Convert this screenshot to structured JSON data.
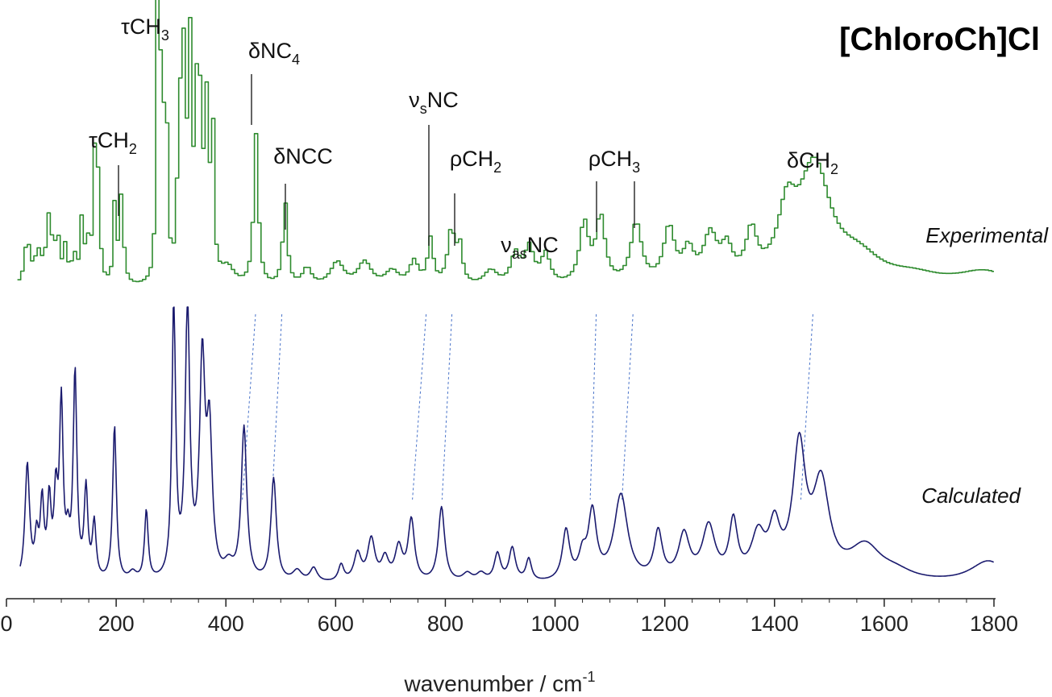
{
  "chart_data": {
    "type": "line",
    "title": "[ChloroCh]Cl",
    "xlabel": "wavenumber / cm",
    "xlabel_superscript": "-1",
    "ylabel": "",
    "xlim": [
      0,
      1800
    ],
    "xticks": [
      0,
      200,
      400,
      600,
      800,
      1000,
      1200,
      1400,
      1600,
      1800
    ],
    "grid": false,
    "legend": "none",
    "series": [
      {
        "name": "Experimental",
        "color": "#2e8b2e",
        "style": "stepped",
        "baseline": 0.05,
        "peaks": [
          [
            35,
            0.15,
            6
          ],
          [
            55,
            0.1,
            8
          ],
          [
            75,
            0.22,
            6
          ],
          [
            90,
            0.15,
            5
          ],
          [
            105,
            0.12,
            4
          ],
          [
            120,
            0.1,
            4
          ],
          [
            135,
            0.22,
            4
          ],
          [
            145,
            0.12,
            3
          ],
          [
            157,
            0.45,
            3
          ],
          [
            165,
            0.35,
            3
          ],
          [
            195,
            0.28,
            3
          ],
          [
            207,
            0.3,
            4
          ],
          [
            272,
            0.85,
            2.5
          ],
          [
            278,
            0.55,
            2.5
          ],
          [
            287,
            0.95,
            3
          ],
          [
            312,
            0.75,
            3
          ],
          [
            322,
            1.0,
            3
          ],
          [
            333,
            0.8,
            3
          ],
          [
            343,
            0.6,
            3
          ],
          [
            352,
            0.75,
            3
          ],
          [
            362,
            0.52,
            3
          ],
          [
            372,
            0.7,
            3
          ],
          [
            400,
            0.06,
            15
          ],
          [
            452,
            0.5,
            5
          ],
          [
            505,
            0.28,
            5
          ],
          [
            545,
            0.06,
            10
          ],
          [
            600,
            0.08,
            15
          ],
          [
            650,
            0.08,
            15
          ],
          [
            700,
            0.05,
            15
          ],
          [
            740,
            0.08,
            10
          ],
          [
            770,
            0.15,
            6
          ],
          [
            808,
            0.18,
            8
          ],
          [
            823,
            0.12,
            6
          ],
          [
            880,
            0.05,
            15
          ],
          [
            925,
            0.1,
            10
          ],
          [
            950,
            0.12,
            10
          ],
          [
            980,
            0.1,
            10
          ],
          [
            1050,
            0.2,
            10
          ],
          [
            1080,
            0.22,
            10
          ],
          [
            1145,
            0.2,
            12
          ],
          [
            1205,
            0.18,
            12
          ],
          [
            1240,
            0.1,
            12
          ],
          [
            1280,
            0.15,
            15
          ],
          [
            1310,
            0.1,
            12
          ],
          [
            1355,
            0.15,
            12
          ],
          [
            1420,
            0.2,
            20
          ],
          [
            1470,
            0.38,
            35
          ],
          [
            1550,
            0.08,
            50
          ],
          [
            1650,
            0.03,
            60
          ],
          [
            1780,
            0.05,
            60
          ]
        ]
      },
      {
        "name": "Calculated",
        "color": "#1a1a6e",
        "style": "smooth",
        "baseline": 0.02,
        "peaks": [
          [
            38,
            0.42,
            5
          ],
          [
            55,
            0.14,
            4
          ],
          [
            65,
            0.27,
            4
          ],
          [
            78,
            0.27,
            4
          ],
          [
            90,
            0.28,
            4
          ],
          [
            100,
            0.62,
            4
          ],
          [
            112,
            0.12,
            4
          ],
          [
            125,
            0.74,
            4
          ],
          [
            145,
            0.32,
            4
          ],
          [
            160,
            0.2,
            4
          ],
          [
            197,
            0.56,
            4
          ],
          [
            230,
            0.03,
            8
          ],
          [
            255,
            0.25,
            4
          ],
          [
            305,
            1.0,
            4
          ],
          [
            330,
            0.97,
            5
          ],
          [
            357,
            0.76,
            6
          ],
          [
            370,
            0.5,
            6
          ],
          [
            405,
            0.05,
            10
          ],
          [
            433,
            0.55,
            6
          ],
          [
            487,
            0.37,
            6
          ],
          [
            530,
            0.04,
            10
          ],
          [
            560,
            0.05,
            8
          ],
          [
            610,
            0.06,
            6
          ],
          [
            640,
            0.1,
            8
          ],
          [
            665,
            0.15,
            8
          ],
          [
            690,
            0.08,
            8
          ],
          [
            715,
            0.12,
            8
          ],
          [
            738,
            0.22,
            7
          ],
          [
            793,
            0.27,
            7
          ],
          [
            840,
            0.03,
            10
          ],
          [
            865,
            0.03,
            10
          ],
          [
            895,
            0.1,
            7
          ],
          [
            922,
            0.12,
            7
          ],
          [
            952,
            0.08,
            6
          ],
          [
            1020,
            0.18,
            8
          ],
          [
            1050,
            0.08,
            8
          ],
          [
            1068,
            0.24,
            9
          ],
          [
            1120,
            0.31,
            15
          ],
          [
            1188,
            0.17,
            9
          ],
          [
            1235,
            0.16,
            12
          ],
          [
            1280,
            0.19,
            14
          ],
          [
            1325,
            0.2,
            9
          ],
          [
            1370,
            0.15,
            15
          ],
          [
            1400,
            0.17,
            12
          ],
          [
            1445,
            0.46,
            14
          ],
          [
            1485,
            0.33,
            18
          ],
          [
            1565,
            0.12,
            35
          ],
          [
            1620,
            0.03,
            40
          ],
          [
            1790,
            0.08,
            40
          ]
        ]
      }
    ],
    "annotations": [
      {
        "label": "τCH",
        "sub": "3",
        "x": 285
      },
      {
        "label": "δNC",
        "sub": "4",
        "x": 450
      },
      {
        "label": "τCH",
        "sub": "2",
        "x": 200
      },
      {
        "label": "δNCC",
        "sub": "",
        "x": 505
      },
      {
        "label": "ν",
        "sub": "s",
        "tail": "NC",
        "x": 770
      },
      {
        "label": "ρCH",
        "sub": "2",
        "x": 810
      },
      {
        "label": "ν",
        "sub": "as",
        "tail": "NC",
        "x": 950
      },
      {
        "label": "ρCH",
        "sub": "3",
        "x": 1110
      },
      {
        "label": "δCH",
        "sub": "2",
        "x": 1460
      }
    ]
  }
}
